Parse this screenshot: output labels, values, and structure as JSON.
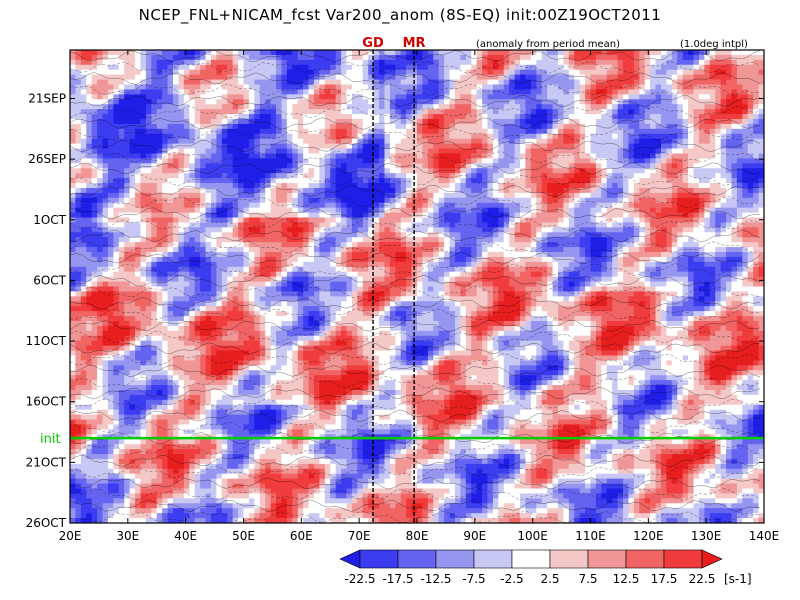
{
  "page": {
    "title": "NCEP_FNL+NICAM_fcst Var200_anom (8S-EQ) init:00Z19OCT2011",
    "anomaly_note": "(anomaly from period mean)",
    "interp_note": "(1.0deg intpl)"
  },
  "chart_data": {
    "type": "heatmap",
    "title": "NCEP_FNL+NICAM_fcst Var200_anom (8S-EQ) init:00Z19OCT2011",
    "xlabel": "",
    "ylabel": "",
    "x_range": [
      20,
      140
    ],
    "x_ticks": [
      "20E",
      "30E",
      "40E",
      "50E",
      "60E",
      "70E",
      "80E",
      "90E",
      "100E",
      "110E",
      "120E",
      "130E",
      "140E"
    ],
    "y_ticks": [
      "21SEP",
      "26SEP",
      "1OCT",
      "6OCT",
      "11OCT",
      "16OCT",
      "21OCT",
      "26OCT"
    ],
    "y_dates": [
      "2011-09-21",
      "2011-09-26",
      "2011-10-01",
      "2011-10-06",
      "2011-10-11",
      "2011-10-16",
      "2011-10-21",
      "2011-10-26"
    ],
    "y_range_dates": [
      "2011-09-17",
      "2011-10-26"
    ],
    "init_line": {
      "label": "init",
      "date": "2011-10-19",
      "color": "#00cc00"
    },
    "markers": [
      {
        "label": "GD",
        "lon": 72.4
      },
      {
        "label": "MR",
        "lon": 79.5
      }
    ],
    "colorbar": {
      "levels": [
        "-22.5",
        "-17.5",
        "-12.5",
        "-7.5",
        "-2.5",
        "2.5",
        "7.5",
        "12.5",
        "17.5",
        "22.5"
      ],
      "unit": "[s-1]",
      "colors": [
        "#1e1ee6",
        "#3c3cf0",
        "#6464f0",
        "#9696f0",
        "#c8c8f5",
        "#ffffff",
        "#f5c8c8",
        "#f09696",
        "#f06464",
        "#f03c3c",
        "#e61e1e"
      ]
    },
    "grid": false,
    "legend_position": "bottom"
  }
}
